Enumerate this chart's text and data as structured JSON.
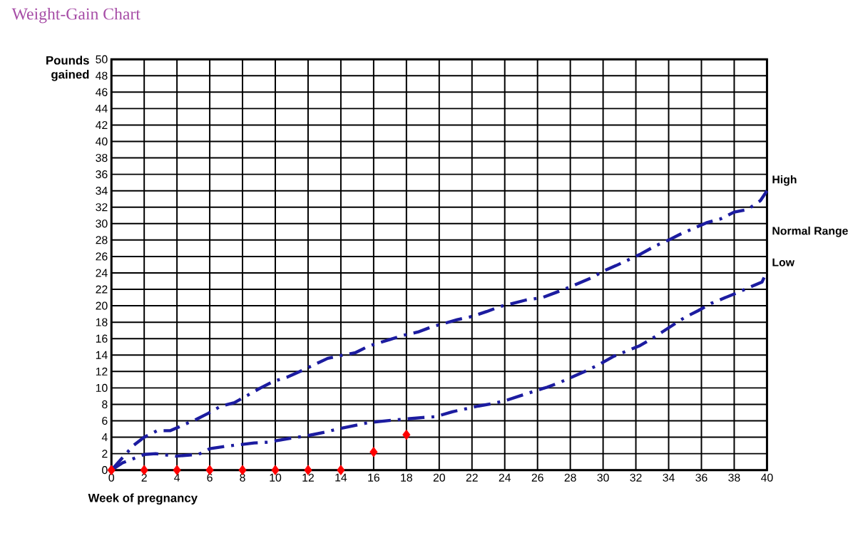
{
  "chart_data": {
    "type": "line",
    "title": "Weight-Gain Chart",
    "xlabel": "Week of pregnancy",
    "ylabel": "Pounds gained",
    "annotations": [
      "Normal Range"
    ],
    "xlim": [
      0,
      40
    ],
    "ylim": [
      0,
      50
    ],
    "xticks": [
      0,
      2,
      4,
      6,
      8,
      10,
      12,
      14,
      16,
      18,
      20,
      22,
      24,
      26,
      28,
      30,
      32,
      34,
      36,
      38,
      40
    ],
    "yticks": [
      0,
      2,
      4,
      6,
      8,
      10,
      12,
      14,
      16,
      18,
      20,
      22,
      24,
      26,
      28,
      30,
      32,
      34,
      36,
      38,
      40,
      42,
      44,
      46,
      48,
      50
    ],
    "grid": true,
    "series": [
      {
        "name": "High",
        "color": "#1c1ca0",
        "line_style": "dashed",
        "marker": "none",
        "x": [
          0,
          1.35,
          2,
          2.8,
          3.6,
          5.2,
          5.9,
          6.7,
          7.5,
          9.1,
          9.9,
          10.7,
          11.6,
          13.2,
          13.9,
          14.9,
          15.7,
          17,
          17.8,
          18.7,
          19.5,
          21.1,
          22,
          22.9,
          23.7,
          25.3,
          26.3,
          27.1,
          28,
          29.4,
          30,
          30.8,
          32.3,
          33.2,
          34,
          34.7,
          36.3,
          37.2,
          38,
          38.8,
          39.6,
          40
        ],
        "values": [
          0,
          3,
          4,
          4.8,
          4.8,
          6.2,
          6.9,
          7.8,
          8.2,
          10,
          10.8,
          11.3,
          12.1,
          13.6,
          13.9,
          14.3,
          15.1,
          15.9,
          16.4,
          16.8,
          17.4,
          18.3,
          18.7,
          19.3,
          19.9,
          20.7,
          21,
          21.6,
          22.3,
          23.5,
          24.2,
          24.9,
          26.3,
          27.3,
          28,
          28.7,
          30.1,
          30.6,
          31.4,
          31.7,
          32.8,
          34
        ]
      },
      {
        "name": "Low",
        "color": "#1c1ca0",
        "line_style": "dashed",
        "marker": "none",
        "x": [
          0,
          0.7,
          2,
          2.7,
          3.9,
          5.3,
          6,
          7,
          8.7,
          9.6,
          10.4,
          12,
          13,
          13.8,
          15.5,
          16.3,
          17.3,
          19,
          19.8,
          20.8,
          22.4,
          23.3,
          24.1,
          25.8,
          26.6,
          27.4,
          29,
          29.8,
          30.6,
          32.2,
          32.9,
          33.6,
          35,
          35.8,
          36.6,
          38.2,
          39,
          39.7,
          40
        ],
        "values": [
          0,
          0.9,
          1.9,
          2,
          1.7,
          1.9,
          2.6,
          2.9,
          3.3,
          3.4,
          3.7,
          4.2,
          4.6,
          5,
          5.7,
          5.9,
          6.1,
          6.4,
          6.5,
          7.1,
          7.8,
          8.1,
          8.5,
          9.6,
          10.1,
          10.7,
          12.1,
          12.9,
          13.8,
          15.1,
          15.9,
          16.8,
          18.6,
          19.4,
          20.3,
          21.6,
          22.3,
          22.9,
          24.2
        ]
      },
      {
        "type": "scatter",
        "color": "#ff0000",
        "marker": "diamond",
        "x": [
          0,
          2,
          4,
          6,
          8,
          10,
          12,
          14,
          16,
          18
        ],
        "values": [
          0,
          0,
          0,
          0,
          0,
          0,
          0,
          0,
          2.2,
          4.3
        ]
      }
    ]
  }
}
